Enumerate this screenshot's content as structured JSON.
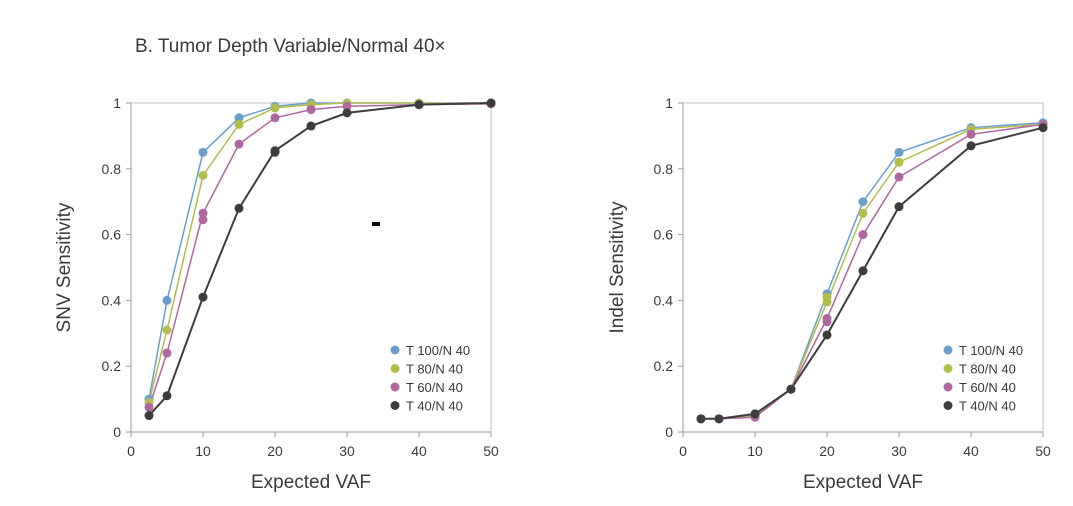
{
  "figure": {
    "title": "B. Tumor Depth Variable/Normal 40×",
    "colors": {
      "T 100/N 40": "#6a9fcc",
      "T 80/N 40": "#b3bd4e",
      "T 60/N 40": "#b0679f",
      "T 40/N 40": "#3d3d3d"
    }
  },
  "chart_data": [
    {
      "type": "line",
      "xlabel": "Expected VAF",
      "ylabel": "SNV Sensitivity",
      "xlim": [
        0,
        50
      ],
      "ylim": [
        0,
        1
      ],
      "xticks": [
        0,
        10,
        20,
        30,
        40,
        50
      ],
      "yticks": [
        0,
        0.2,
        0.4,
        0.6,
        0.8,
        1
      ],
      "grid": false,
      "legend": "bottom-right",
      "x": [
        2.5,
        5,
        10,
        15,
        20,
        25,
        30,
        40,
        50
      ],
      "series": [
        {
          "name": "T 100/N 40",
          "color": "#6a9fcc",
          "values": [
            0.1,
            0.4,
            0.85,
            0.955,
            0.99,
            1.0,
            1.0,
            1.0,
            1.0
          ]
        },
        {
          "name": "T 80/N 40",
          "color": "#b3bd4e",
          "values": [
            0.09,
            0.31,
            0.78,
            0.935,
            0.985,
            0.995,
            1.0,
            1.0,
            0.998
          ]
        },
        {
          "name": "T 60/N 40",
          "color": "#b0679f",
          "values": [
            0.075,
            0.24,
            0.665,
            0.875,
            0.955,
            0.98,
            0.99,
            0.995,
            0.998
          ]
        },
        {
          "name": "T 40/N 40",
          "color": "#3d3d3d",
          "values": [
            0.05,
            0.11,
            0.41,
            0.68,
            0.855,
            0.93,
            0.97,
            0.995,
            1.0
          ]
        }
      ],
      "extra_points": [
        {
          "series": "T 60/N 40",
          "x": 10,
          "y": 0.645
        },
        {
          "series": "T 40/N 40",
          "x": 20,
          "y": 0.85
        }
      ]
    },
    {
      "type": "line",
      "xlabel": "Expected VAF",
      "ylabel": "Indel Sensitivity",
      "xlim": [
        0,
        50
      ],
      "ylim": [
        0,
        1
      ],
      "xticks": [
        0,
        10,
        20,
        30,
        40,
        50
      ],
      "yticks": [
        0,
        0.2,
        0.4,
        0.6,
        0.8,
        1
      ],
      "grid": false,
      "legend": "bottom-right",
      "x": [
        2.5,
        5,
        10,
        15,
        20,
        25,
        30,
        40,
        50
      ],
      "series": [
        {
          "name": "T 100/N 40",
          "color": "#6a9fcc",
          "values": [
            0.04,
            0.04,
            0.05,
            0.13,
            0.42,
            0.7,
            0.85,
            0.925,
            0.94
          ]
        },
        {
          "name": "T 80/N 40",
          "color": "#b3bd4e",
          "values": [
            0.04,
            0.04,
            0.05,
            0.13,
            0.395,
            0.665,
            0.82,
            0.92,
            0.935
          ]
        },
        {
          "name": "T 60/N 40",
          "color": "#b0679f",
          "values": [
            0.04,
            0.04,
            0.045,
            0.13,
            0.345,
            0.6,
            0.775,
            0.905,
            0.935
          ]
        },
        {
          "name": "T 40/N 40",
          "color": "#3d3d3d",
          "values": [
            0.04,
            0.04,
            0.055,
            0.13,
            0.295,
            0.49,
            0.685,
            0.87,
            0.925
          ]
        }
      ],
      "extra_points": [
        {
          "series": "T 80/N 40",
          "x": 20,
          "y": 0.41
        },
        {
          "series": "T 60/N 40",
          "x": 20,
          "y": 0.335
        }
      ]
    }
  ]
}
